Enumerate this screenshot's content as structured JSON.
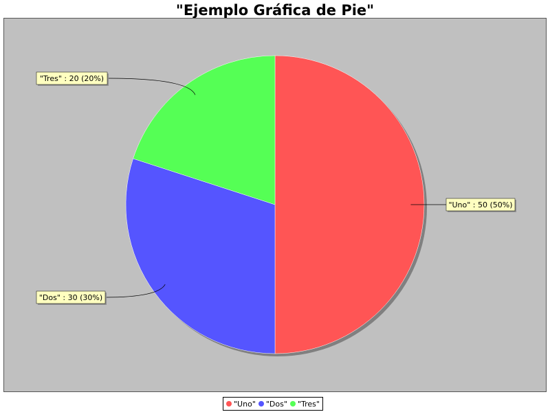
{
  "chart_data": {
    "type": "pie",
    "title": "\"Ejemplo Gráfica de Pie\"",
    "slices": [
      {
        "name": "\"Uno\"",
        "value": 50,
        "percent": "50%",
        "color": "#ff5555",
        "label": "\"Uno\" : 50 (50%)"
      },
      {
        "name": "\"Dos\"",
        "value": 30,
        "percent": "30%",
        "color": "#5555ff",
        "label": "\"Dos\" : 30 (30%)"
      },
      {
        "name": "\"Tres\"",
        "value": 20,
        "percent": "20%",
        "color": "#55ff55",
        "label": "\"Tres\" : 20 (20%)"
      }
    ],
    "legend": {
      "placement": "bottom",
      "entries": [
        "\"Uno\"",
        "\"Dos\"",
        "\"Tres\""
      ]
    },
    "plot_background": "#c0c0c0",
    "label_background": "#ffffc0"
  }
}
